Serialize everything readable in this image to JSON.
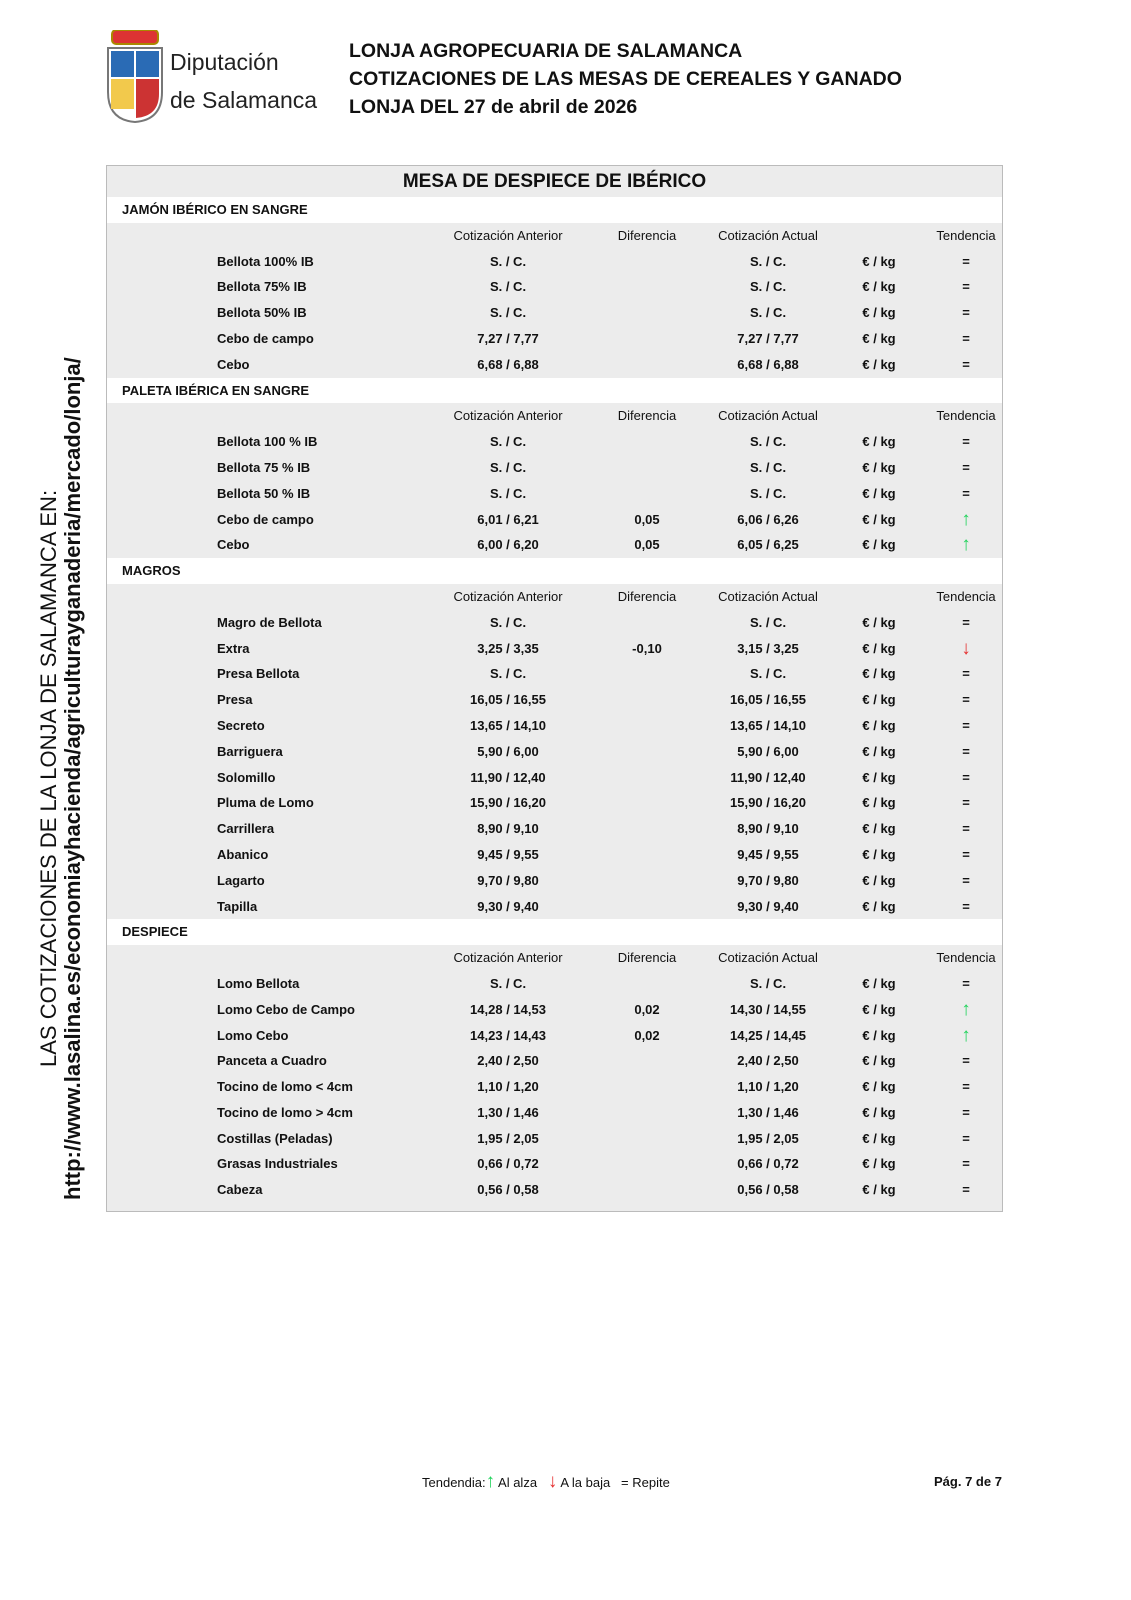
{
  "header": {
    "logo_line1": "Diputación",
    "logo_line2": "de Salamanca",
    "title_lines": [
      "LONJA AGROPECUARIA DE SALAMANCA",
      "COTIZACIONES DE LAS MESAS DE CEREALES Y GANADO",
      "LONJA DEL 27 de abril de 2026"
    ]
  },
  "side_text": {
    "line1": "LAS COTIZACIONES DE LA LONJA DE SALAMANCA EN:",
    "line2": "http://www.lasalina.es/economiayhacienda/agriculturayganaderia/mercado/lonja/"
  },
  "table": {
    "title": "MESA DE DESPIECE DE IBÉRICO",
    "columns": [
      "Cotización Anterior",
      "Diferencia",
      "Cotización Actual",
      "Tendencia"
    ],
    "unit": "€ / kg",
    "sections": [
      {
        "name": "JAMÓN IBÉRICO EN SANGRE",
        "rows": [
          [
            "Bellota 100% IB",
            "S. / C.",
            null,
            "S. / C.",
            "="
          ],
          [
            "Bellota 75% IB",
            "S. / C.",
            null,
            "S. / C.",
            "="
          ],
          [
            "Bellota 50% IB",
            "S. / C.",
            null,
            "S. / C.",
            "="
          ],
          [
            "Cebo de campo",
            "7,27 / 7,77",
            null,
            "7,27 / 7,77",
            "="
          ],
          [
            "Cebo",
            "6,68 / 6,88",
            null,
            "6,68 / 6,88",
            "="
          ]
        ]
      },
      {
        "name": "PALETA IBÉRICA EN SANGRE",
        "rows": [
          [
            "Bellota 100 % IB",
            "S. / C.",
            null,
            "S. / C.",
            "="
          ],
          [
            "Bellota 75 % IB",
            "S. / C.",
            null,
            "S. / C.",
            "="
          ],
          [
            "Bellota 50 % IB",
            "S. / C.",
            null,
            "S. / C.",
            "="
          ],
          [
            "Cebo de campo",
            "6,01 / 6,21",
            "0,05",
            "6,06 / 6,26",
            "↑"
          ],
          [
            "Cebo",
            "6,00 / 6,20",
            "0,05",
            "6,05 / 6,25",
            "↑"
          ]
        ]
      },
      {
        "name": "MAGROS",
        "rows": [
          [
            "Magro de Bellota",
            "S. / C.",
            null,
            "S. / C.",
            "="
          ],
          [
            "Extra",
            "3,25 / 3,35",
            "-0,10",
            "3,15 / 3,25",
            "↓"
          ],
          [
            "Presa Bellota",
            "S. / C.",
            null,
            "S. / C.",
            "="
          ],
          [
            "Presa",
            "16,05 / 16,55",
            null,
            "16,05 / 16,55",
            "="
          ],
          [
            "Secreto",
            "13,65 / 14,10",
            null,
            "13,65 / 14,10",
            "="
          ],
          [
            "Barriguera",
            "5,90 / 6,00",
            null,
            "5,90 / 6,00",
            "="
          ],
          [
            "Solomillo",
            "11,90 / 12,40",
            null,
            "11,90 / 12,40",
            "="
          ],
          [
            "Pluma de Lomo",
            "15,90 / 16,20",
            null,
            "15,90 / 16,20",
            "="
          ],
          [
            "Carrillera",
            "8,90 / 9,10",
            null,
            "8,90 / 9,10",
            "="
          ],
          [
            "Abanico",
            "9,45 / 9,55",
            null,
            "9,45 / 9,55",
            "="
          ],
          [
            "Lagarto",
            "9,70 / 9,80",
            null,
            "9,70 / 9,80",
            "="
          ],
          [
            "Tapilla",
            "9,30 / 9,40",
            null,
            "9,30 / 9,40",
            "="
          ]
        ]
      },
      {
        "name": "DESPIECE",
        "rows": [
          [
            "Lomo Bellota",
            "S. / C.",
            null,
            "S. / C.",
            "="
          ],
          [
            "Lomo Cebo de Campo",
            "14,28 / 14,53",
            "0,02",
            "14,30 / 14,55",
            "↑"
          ],
          [
            "Lomo Cebo",
            "14,23 / 14,43",
            "0,02",
            "14,25 / 14,45",
            "↑"
          ],
          [
            "Panceta a Cuadro",
            "2,40 / 2,50",
            null,
            "2,40 / 2,50",
            "="
          ],
          [
            "Tocino de lomo < 4cm",
            "1,10 / 1,20",
            null,
            "1,10 / 1,20",
            "="
          ],
          [
            "Tocino de lomo > 4cm",
            "1,30 / 1,46",
            null,
            "1,30 / 1,46",
            "="
          ],
          [
            "Costillas (Peladas)",
            "1,95 / 2,05",
            null,
            "1,95 / 2,05",
            "="
          ],
          [
            "Grasas Industriales",
            "0,66 / 0,72",
            null,
            "0,66 / 0,72",
            "="
          ],
          [
            "Cabeza",
            "0,56 / 0,58",
            null,
            "0,56 / 0,58",
            "="
          ]
        ]
      }
    ]
  },
  "footer": {
    "legend_label": "Tendendia:",
    "up_symbol": "↑",
    "up_text": "Al alza",
    "down_symbol": "↓",
    "down_text": "A la baja",
    "equal_text": "= Repite",
    "page": "Pág. 7 de 7"
  }
}
